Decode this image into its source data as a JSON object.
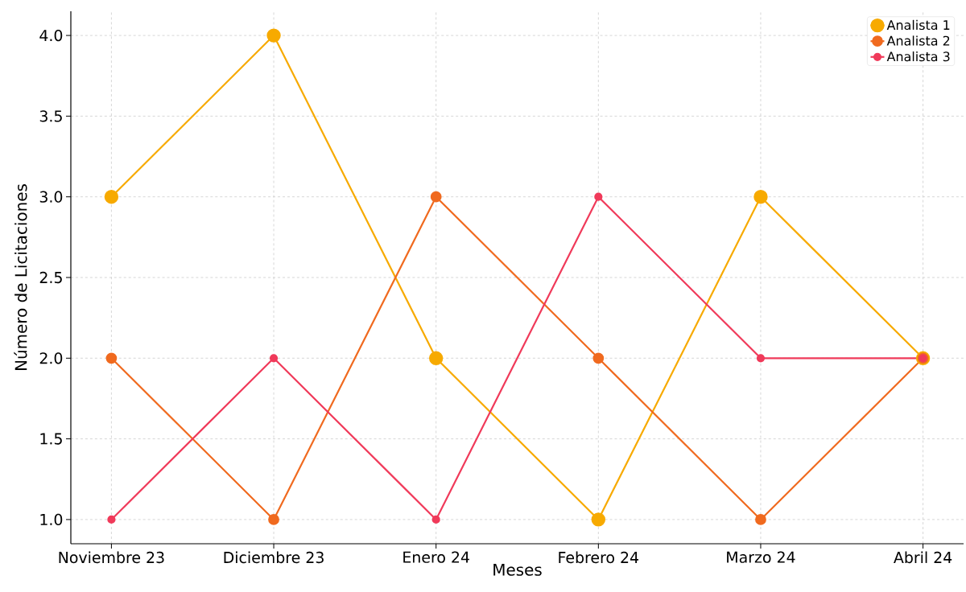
{
  "chart_data": {
    "type": "line",
    "xlabel": "Meses",
    "ylabel": "Número de Licitaciones",
    "categories": [
      "Noviembre 23",
      "Diciembre 23",
      "Enero 24",
      "Febrero 24",
      "Marzo 24",
      "Abril 24"
    ],
    "series": [
      {
        "name": "Analista 1",
        "color": "#f7aa00",
        "values": [
          3,
          4,
          2,
          1,
          3,
          2
        ]
      },
      {
        "name": "Analista 2",
        "color": "#f06a1f",
        "values": [
          2,
          1,
          3,
          2,
          1,
          2
        ]
      },
      {
        "name": "Analista 3",
        "color": "#f03a5a",
        "values": [
          1,
          2,
          1,
          3,
          2,
          2
        ]
      }
    ],
    "ylim": [
      0.85,
      4.15
    ],
    "yticks": [
      {
        "value": 1,
        "label": "1.0"
      },
      {
        "value": 1.5,
        "label": "1.5"
      },
      {
        "value": 2,
        "label": "2.0"
      },
      {
        "value": 2.5,
        "label": "2.5"
      },
      {
        "value": 3,
        "label": "3.0"
      },
      {
        "value": 3.5,
        "label": "3.5"
      },
      {
        "value": 4,
        "label": "4.0"
      }
    ],
    "grid": true,
    "legend": "top right",
    "marker": "circle",
    "line_style": "solid"
  }
}
